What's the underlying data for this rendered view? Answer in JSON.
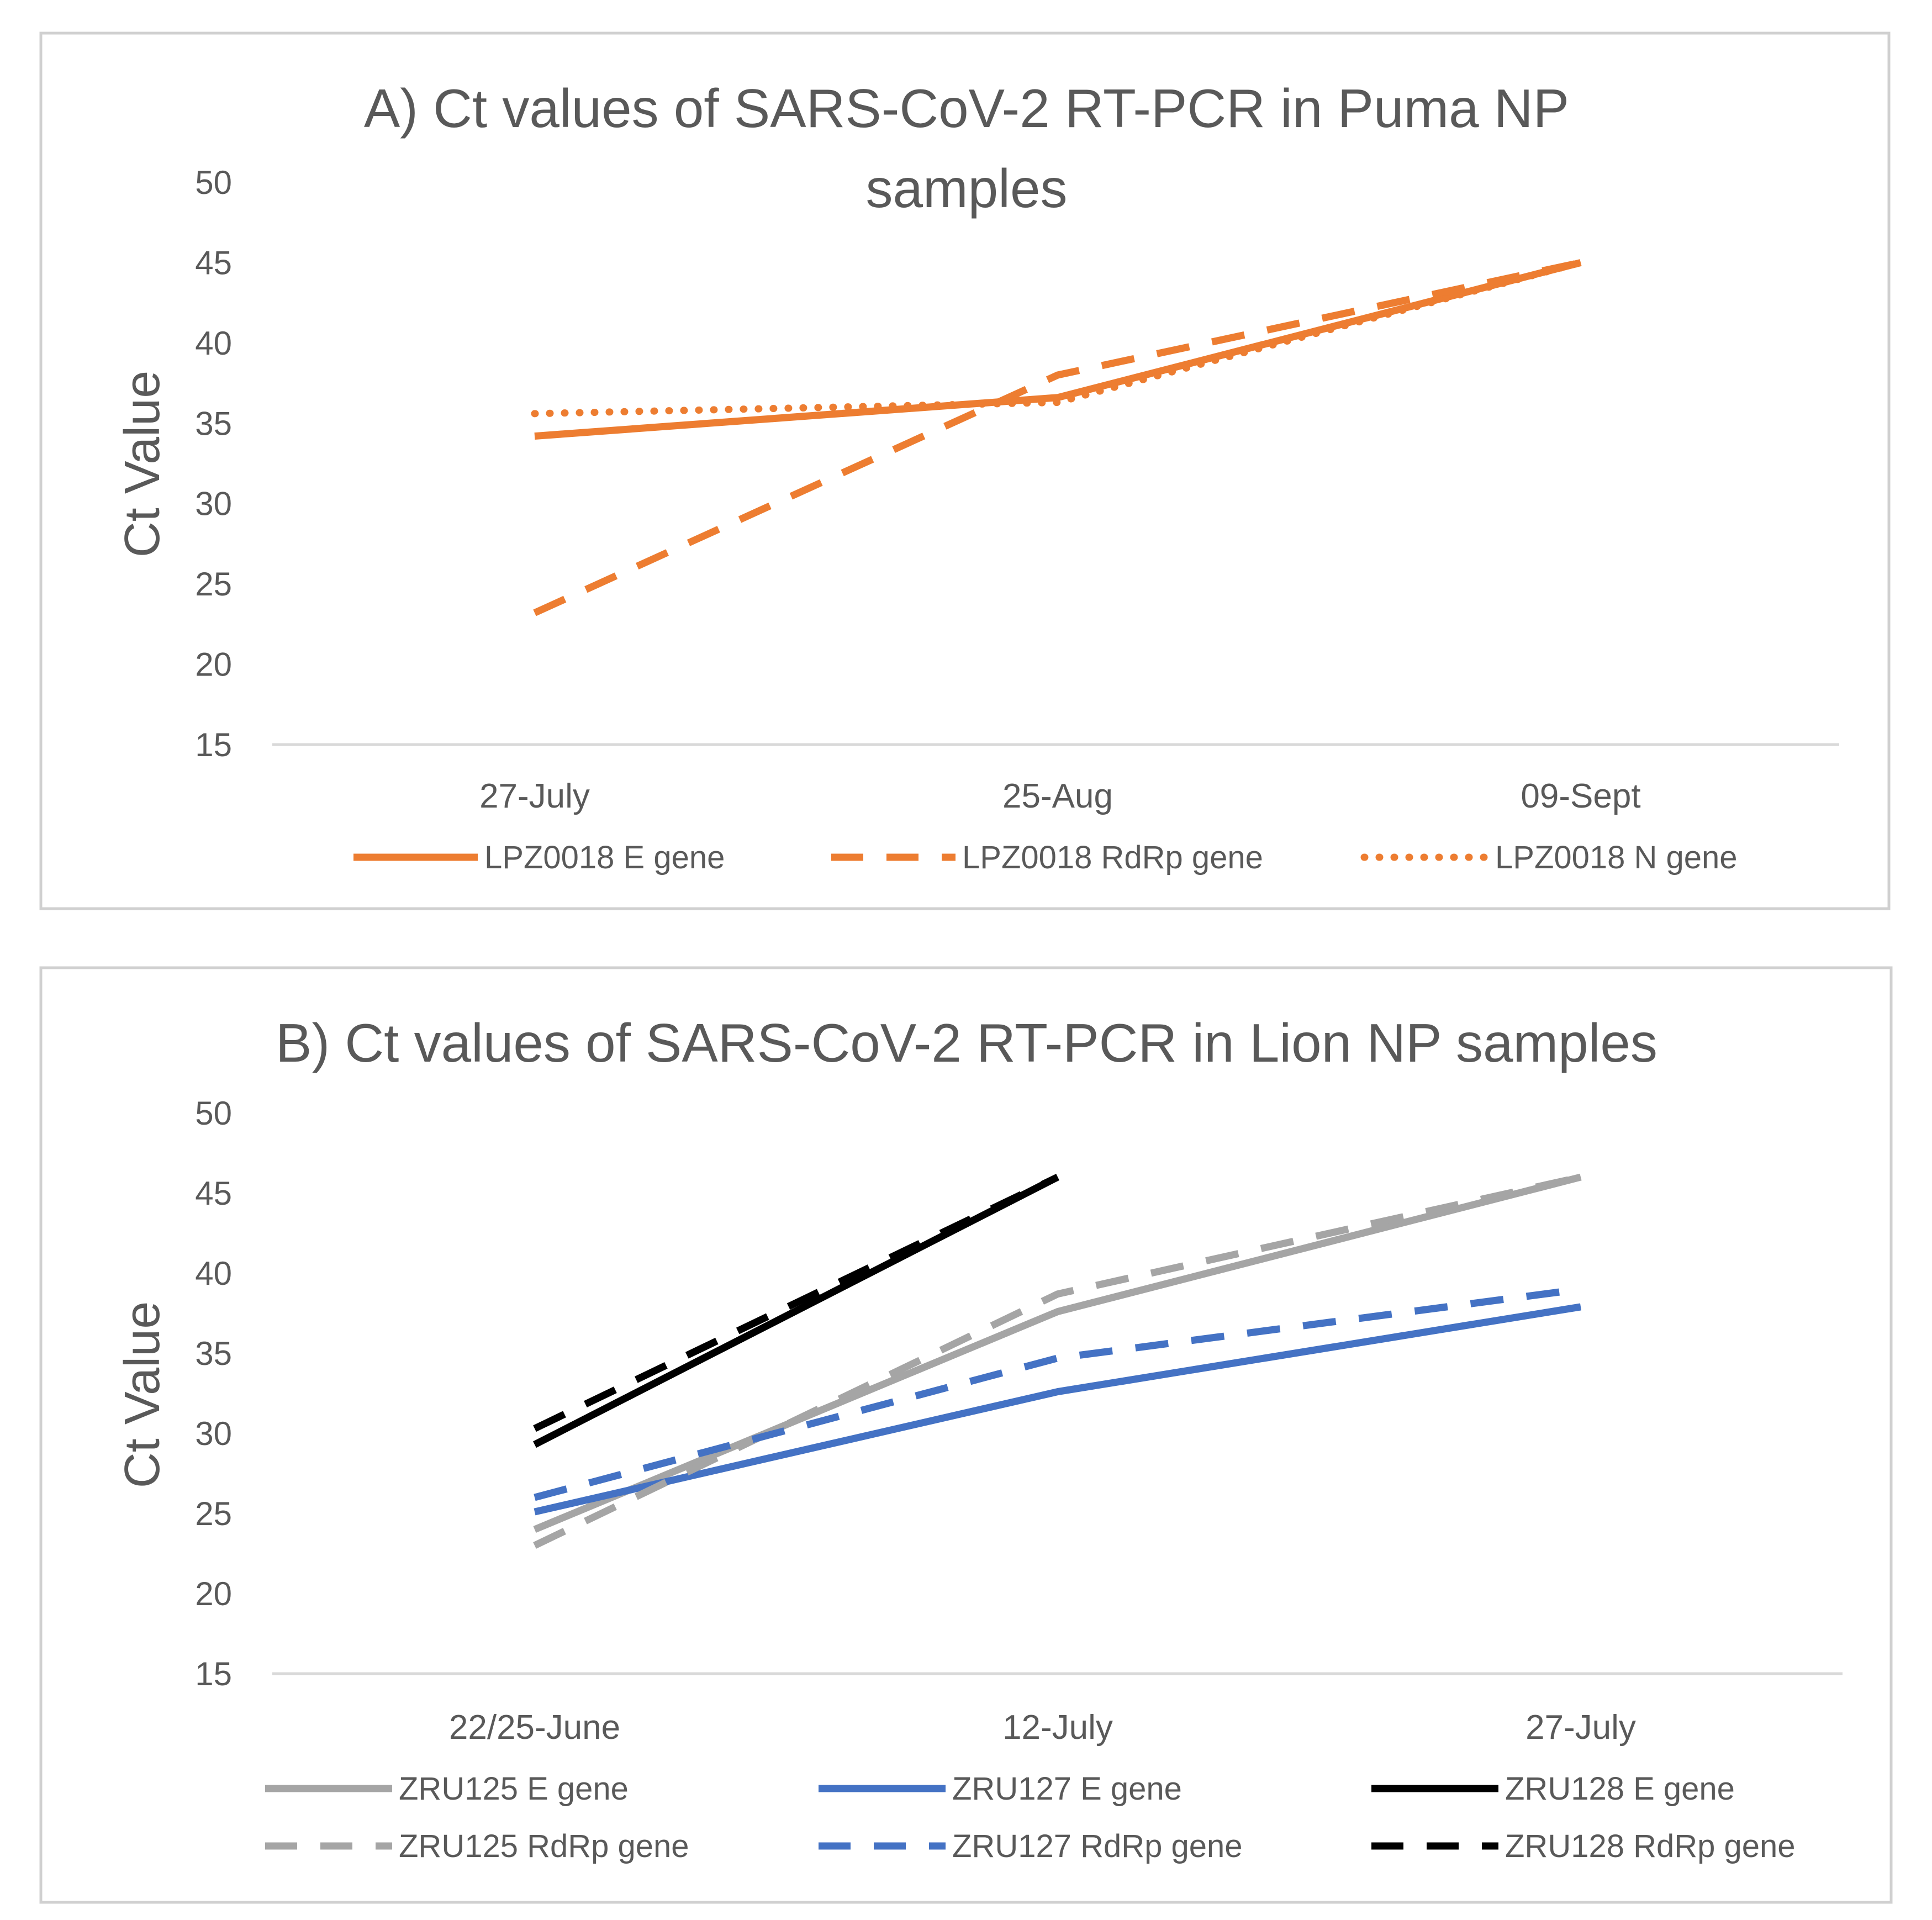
{
  "chart_data": [
    {
      "type": "line",
      "title_lines": [
        "A)  Ct values of SARS-CoV-2 RT-PCR in Puma NP",
        "samples"
      ],
      "ylabel": "Ct Value",
      "xlabel": "",
      "categories": [
        "27-July",
        "25-Aug",
        "09-Sept"
      ],
      "ylim": [
        15,
        50
      ],
      "yticks": [
        "15",
        "20",
        "25",
        "30",
        "35",
        "40",
        "45",
        "50"
      ],
      "grid": false,
      "legend_position": "bottom",
      "series": [
        {
          "name": "LPZ0018 E gene",
          "values": [
            34.2,
            36.6,
            45.0
          ],
          "color": "#ED7D31",
          "style": "solid"
        },
        {
          "name": "LPZ0018 RdRp gene",
          "values": [
            23.2,
            38.0,
            45.0
          ],
          "color": "#ED7D31",
          "style": "dashed"
        },
        {
          "name": "LPZ0018 N gene",
          "values": [
            35.6,
            36.3,
            45.0
          ],
          "color": "#ED7D31",
          "style": "dotted"
        }
      ]
    },
    {
      "type": "line",
      "title_lines": [
        "B)  Ct values of SARS-CoV-2 RT-PCR in Lion NP samples"
      ],
      "ylabel": "Ct Value",
      "xlabel": "",
      "categories": [
        "22/25-June",
        "12-July",
        "27-July"
      ],
      "ylim": [
        15,
        50
      ],
      "yticks": [
        "15",
        "20",
        "25",
        "30",
        "35",
        "40",
        "45",
        "50"
      ],
      "grid": false,
      "legend_position": "bottom",
      "series": [
        {
          "name": "ZRU125 E gene",
          "values": [
            24.0,
            37.6,
            46.0
          ],
          "color": "#A5A5A5",
          "style": "solid"
        },
        {
          "name": "ZRU127 E gene",
          "values": [
            25.1,
            32.6,
            37.9
          ],
          "color": "#4472C4",
          "style": "solid"
        },
        {
          "name": "ZRU128 E gene",
          "values": [
            29.3,
            46.0,
            null
          ],
          "color": "#000000",
          "style": "solid"
        },
        {
          "name": "ZRU125 RdRp gene",
          "values": [
            23.0,
            38.7,
            46.0
          ],
          "color": "#A5A5A5",
          "style": "dashed"
        },
        {
          "name": "ZRU127 RdRp gene",
          "values": [
            26.0,
            34.7,
            39.0
          ],
          "color": "#4472C4",
          "style": "dashed"
        },
        {
          "name": "ZRU128 RdRp gene",
          "values": [
            30.3,
            46.0,
            null
          ],
          "color": "#000000",
          "style": "dashed"
        }
      ]
    }
  ]
}
